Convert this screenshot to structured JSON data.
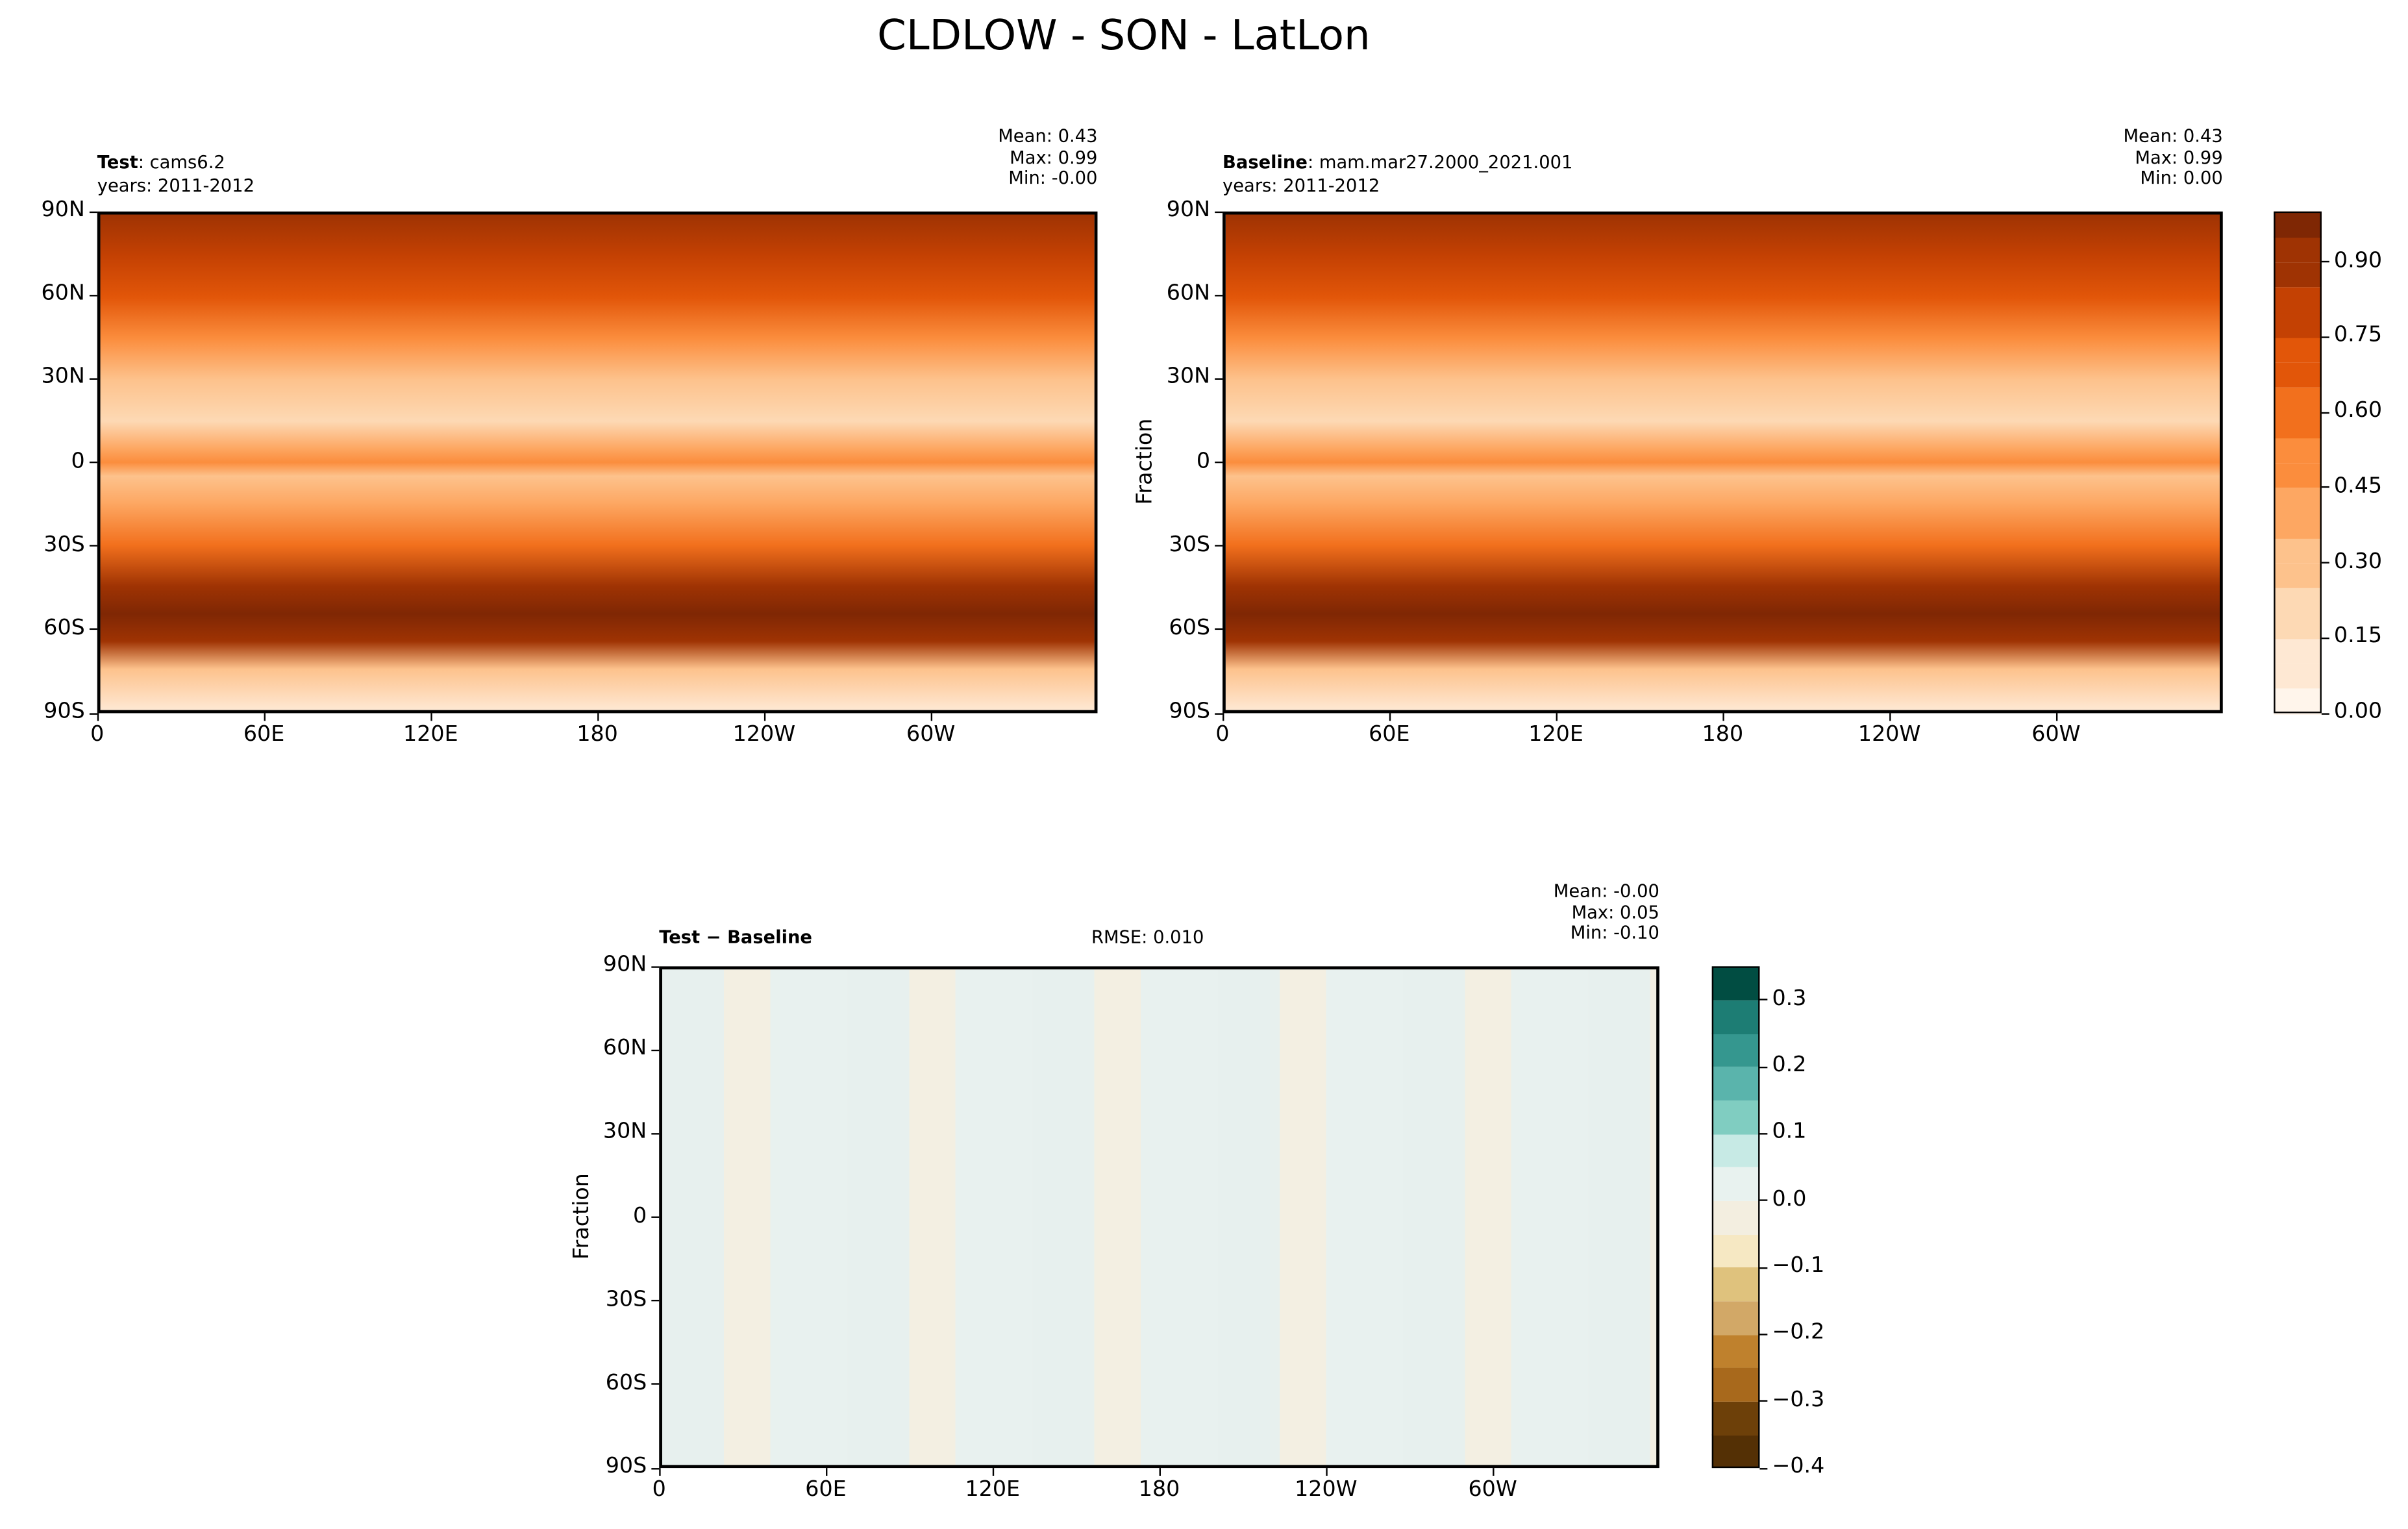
{
  "title": "CLDLOW - SON - LatLon",
  "chart_data": [
    {
      "type": "heatmap",
      "panel": "test",
      "label_bold": "Test",
      "label_rest": ": cams6.2",
      "years": "years: 2011-2012",
      "stats": [
        "Mean:  0.43",
        "Max:  0.99",
        "Min: -0.00"
      ],
      "xticks": [
        "0",
        "60E",
        "120E",
        "180",
        "120W",
        "60W"
      ],
      "yticks": [
        "90N",
        "60N",
        "30N",
        "0",
        "30S",
        "60S",
        "90S"
      ],
      "zonal_profile": {
        "lat": [
          90,
          75,
          60,
          45,
          30,
          15,
          5,
          0,
          -5,
          -15,
          -30,
          -45,
          -55,
          -65,
          -75,
          -90
        ],
        "value": [
          0.85,
          0.8,
          0.7,
          0.5,
          0.25,
          0.15,
          0.35,
          0.45,
          0.3,
          0.35,
          0.6,
          0.85,
          0.95,
          0.85,
          0.3,
          0.05
        ]
      }
    },
    {
      "type": "heatmap",
      "panel": "baseline",
      "label_bold": "Baseline",
      "label_rest": ": mam.mar27.2000_2021.001",
      "years": "years: 2011-2012",
      "stats": [
        "Mean:  0.43",
        "Max:  0.99",
        "Min:  0.00"
      ],
      "ylabel": "Fraction",
      "xticks": [
        "0",
        "60E",
        "120E",
        "180",
        "120W",
        "60W"
      ],
      "yticks": [
        "90N",
        "60N",
        "30N",
        "0",
        "30S",
        "60S",
        "90S"
      ],
      "colorbar": {
        "range": [
          0,
          1
        ],
        "step": 0.05,
        "ticks": [
          "0.00",
          "0.15",
          "0.30",
          "0.45",
          "0.60",
          "0.75",
          "0.90"
        ],
        "colormap": "Oranges"
      }
    },
    {
      "type": "heatmap",
      "panel": "difference",
      "label_bold": "Test − Baseline",
      "rmse": "RMSE: 0.010",
      "stats": [
        "Mean: -0.00",
        "Max:  0.05",
        "Min: -0.10"
      ],
      "ylabel": "Fraction",
      "xticks": [
        "0",
        "60E",
        "120E",
        "180",
        "120W",
        "60W"
      ],
      "yticks": [
        "90N",
        "60N",
        "30N",
        "0",
        "30S",
        "60S",
        "90S"
      ],
      "colorbar": {
        "range": [
          -0.4,
          0.35
        ],
        "step": 0.05,
        "ticks": [
          "−0.4",
          "−0.3",
          "−0.2",
          "−0.1",
          "0.0",
          "0.1",
          "0.2",
          "0.3"
        ],
        "colormap": "BrBG"
      }
    }
  ]
}
